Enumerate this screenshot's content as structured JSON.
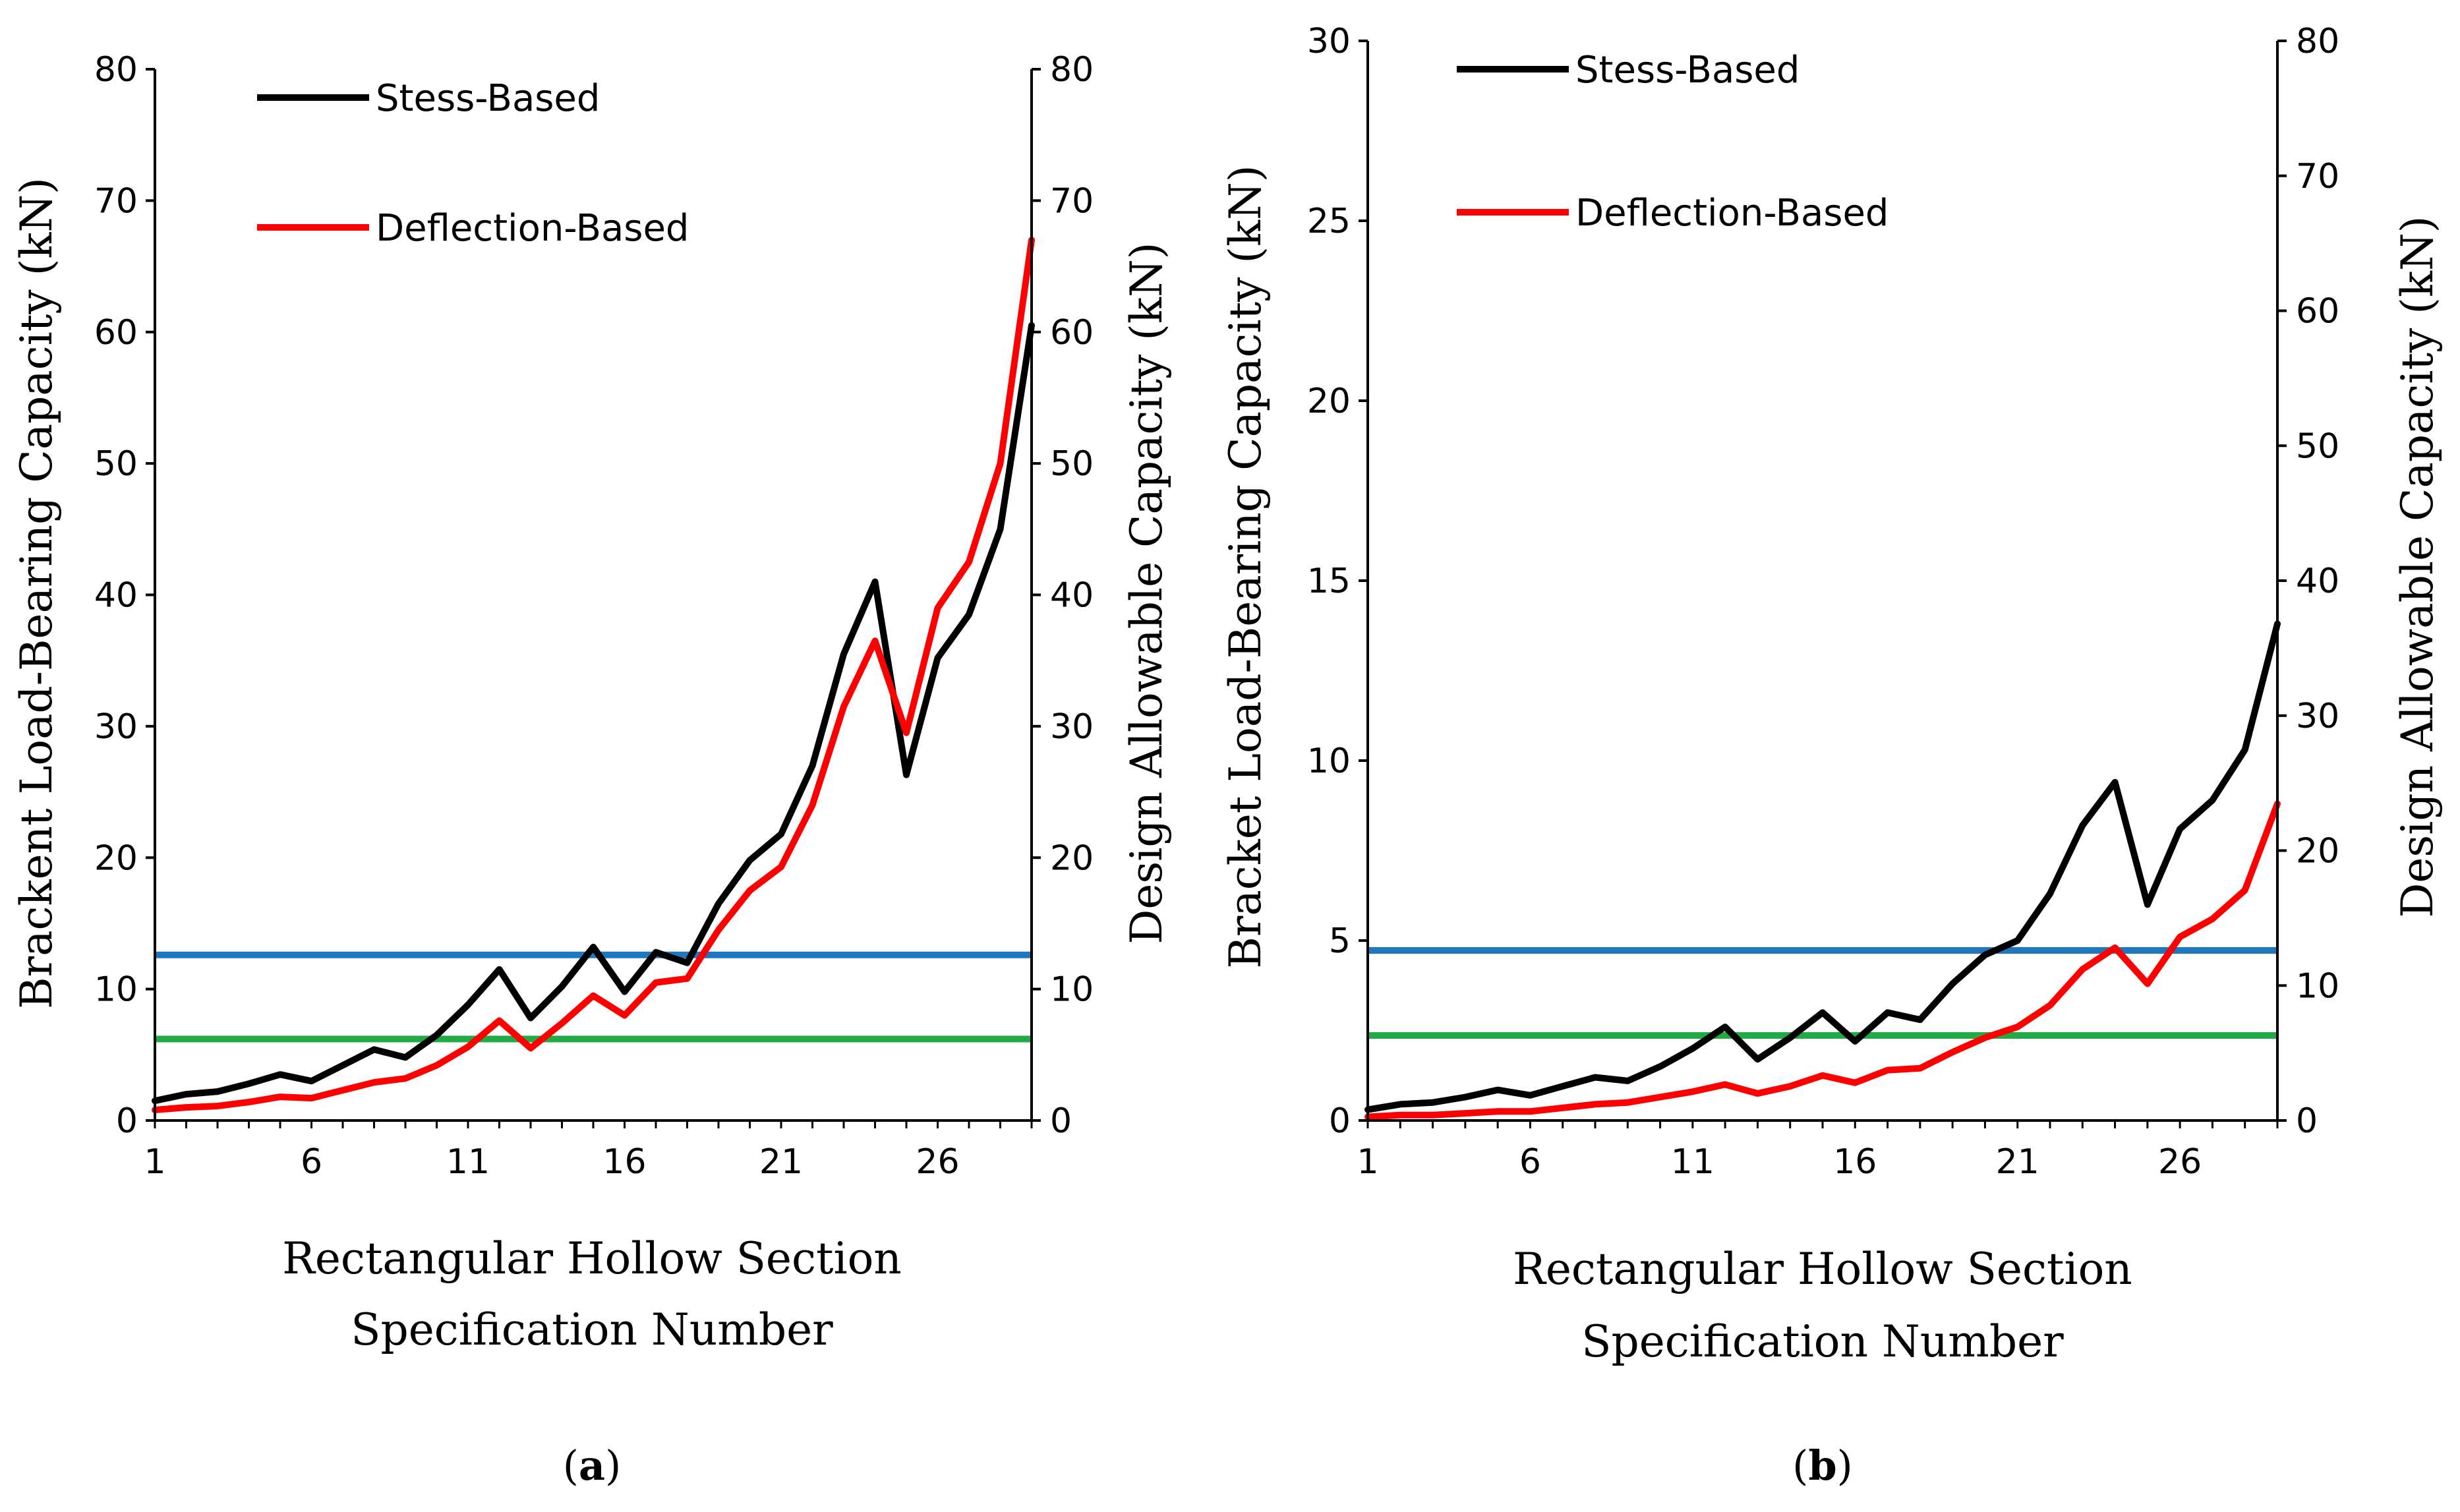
{
  "chart_data": [
    {
      "type": "line",
      "panel_label": "a",
      "x": [
        1,
        2,
        3,
        4,
        5,
        6,
        7,
        8,
        9,
        10,
        11,
        12,
        13,
        14,
        15,
        16,
        17,
        18,
        19,
        20,
        21,
        22,
        23,
        24,
        25,
        26,
        27,
        28,
        29
      ],
      "xticks": [
        "1",
        "6",
        "11",
        "16",
        "21",
        "26"
      ],
      "xlabel": [
        "Rectangular Hollow Section",
        "Specification Number"
      ],
      "ylabel": "Brackent Load-Bearing Capacity (kN)",
      "ylim": [
        0,
        80
      ],
      "yticks": [
        "0",
        "10",
        "20",
        "30",
        "40",
        "50",
        "60",
        "70",
        "80"
      ],
      "y2label": "Design Allowable Capacity (kN)",
      "y2lim": [
        0,
        80
      ],
      "y2ticks": [
        "0",
        "10",
        "20",
        "30",
        "40",
        "50",
        "60",
        "70",
        "80"
      ],
      "series": [
        {
          "name": "Stess-Based",
          "color": "#000000",
          "values": [
            1.5,
            2.0,
            2.2,
            2.8,
            3.5,
            3.0,
            4.2,
            5.4,
            4.8,
            6.5,
            8.8,
            11.5,
            7.8,
            10.2,
            13.2,
            9.8,
            12.8,
            12.0,
            16.5,
            19.8,
            21.8,
            27.0,
            35.5,
            41.0,
            26.3,
            35.2,
            38.5,
            45.0,
            60.5
          ]
        },
        {
          "name": "Deflection-Based",
          "color": "#ff0000",
          "values": [
            0.8,
            1.0,
            1.1,
            1.4,
            1.8,
            1.7,
            2.3,
            2.9,
            3.2,
            4.2,
            5.6,
            7.6,
            5.5,
            7.4,
            9.5,
            8.0,
            10.5,
            10.8,
            14.5,
            17.5,
            19.3,
            24.0,
            31.5,
            36.5,
            29.5,
            39.0,
            42.5,
            50.0,
            67.0
          ]
        }
      ],
      "reference_lines": [
        {
          "color": "#1f77c0",
          "value_y2": 12.6
        },
        {
          "color": "#22aa44",
          "value_y2": 6.2
        }
      ]
    },
    {
      "type": "line",
      "panel_label": "b",
      "x": [
        1,
        2,
        3,
        4,
        5,
        6,
        7,
        8,
        9,
        10,
        11,
        12,
        13,
        14,
        15,
        16,
        17,
        18,
        19,
        20,
        21,
        22,
        23,
        24,
        25,
        26,
        27,
        28,
        29
      ],
      "xticks": [
        "1",
        "6",
        "11",
        "16",
        "21",
        "26"
      ],
      "xlabel": [
        "Rectangular Hollow Section",
        "Specification Number"
      ],
      "ylabel": "Bracket Load-Bearing Capacity (kN)",
      "ylim": [
        0,
        30
      ],
      "yticks": [
        "0",
        "5",
        "10",
        "15",
        "20",
        "25",
        "30"
      ],
      "y2label": "Design Allowable Capacity (kN)",
      "y2lim": [
        0,
        80
      ],
      "y2ticks": [
        "0",
        "10",
        "20",
        "30",
        "40",
        "50",
        "60",
        "70",
        "80"
      ],
      "series": [
        {
          "name": "Stess-Based",
          "color": "#000000",
          "values": [
            0.3,
            0.45,
            0.5,
            0.65,
            0.85,
            0.7,
            0.95,
            1.2,
            1.1,
            1.5,
            2.0,
            2.6,
            1.7,
            2.3,
            3.0,
            2.2,
            3.0,
            2.8,
            3.8,
            4.6,
            5.0,
            6.3,
            8.2,
            9.4,
            6.0,
            8.1,
            8.9,
            10.3,
            13.8
          ]
        },
        {
          "name": "Deflection-Based",
          "color": "#ff0000",
          "values": [
            0.1,
            0.15,
            0.15,
            0.2,
            0.25,
            0.25,
            0.35,
            0.45,
            0.5,
            0.65,
            0.8,
            1.0,
            0.75,
            0.95,
            1.25,
            1.05,
            1.4,
            1.45,
            1.9,
            2.3,
            2.6,
            3.2,
            4.2,
            4.8,
            3.8,
            5.1,
            5.6,
            6.4,
            8.8
          ]
        }
      ],
      "reference_lines": [
        {
          "color": "#1f77c0",
          "value_y2": 12.6
        },
        {
          "color": "#22aa44",
          "value_y2": 6.3
        }
      ]
    }
  ]
}
